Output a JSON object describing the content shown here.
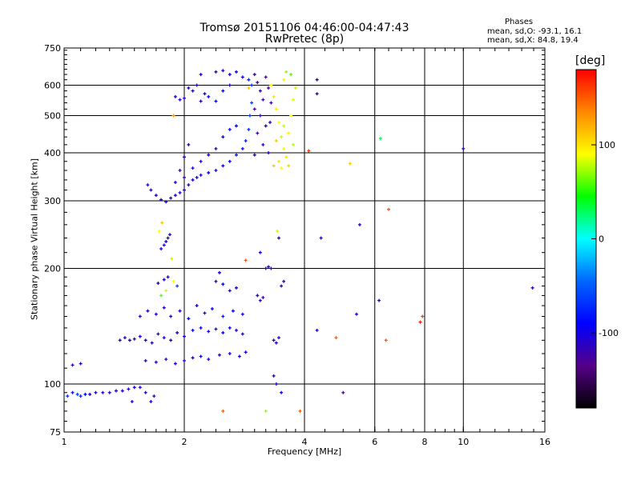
{
  "header": {
    "title": "Tromsø 20151106 04:46:00-04:47:43",
    "subtitle": "RwPretec (8p)"
  },
  "phases_box": {
    "heading": "Phases",
    "line_o": "mean, sd,O: -93.1, 16.1",
    "line_x": "mean, sd,X:  84.8, 19.4"
  },
  "colorbar": {
    "unit": "[deg]",
    "ticks": [
      "100",
      "0",
      "-100"
    ],
    "tick_values": [
      100,
      0,
      -100
    ],
    "range": [
      -180,
      180
    ],
    "colors": [
      "#ff0000",
      "#ff8800",
      "#ffff00",
      "#00ff00",
      "#00ffff",
      "#0066ff",
      "#0000ff",
      "#550088",
      "#000000"
    ]
  },
  "chart_data": {
    "type": "scatter",
    "title": "Tromsø 20151106 04:46:00-04:47:43",
    "subtitle": "RwPretec (8p)",
    "xlabel": "Frequency [MHz]",
    "ylabel": "Stationary phase Virtual Height [km]",
    "x_scale": "log",
    "y_scale": "log",
    "xlim": [
      1,
      16
    ],
    "ylim": [
      75,
      750
    ],
    "x_ticks": [
      1,
      2,
      4,
      6,
      8,
      10,
      16
    ],
    "x_tick_labels": [
      "1",
      "2",
      "4",
      "6",
      "8",
      "10",
      "16"
    ],
    "y_ticks": [
      75,
      100,
      200,
      300,
      400,
      500,
      600,
      750
    ],
    "y_tick_labels": [
      "75",
      "100",
      "200",
      "300",
      "400",
      "500",
      "600",
      "750"
    ],
    "grid": true,
    "color_variable": "phase [deg]",
    "points": [
      {
        "x": 1.02,
        "y": 93,
        "phase": -70
      },
      {
        "x": 1.05,
        "y": 95,
        "phase": -85
      },
      {
        "x": 1.08,
        "y": 94,
        "phase": -60
      },
      {
        "x": 1.1,
        "y": 93,
        "phase": -75
      },
      {
        "x": 1.13,
        "y": 94,
        "phase": -90
      },
      {
        "x": 1.16,
        "y": 94,
        "phase": -100
      },
      {
        "x": 1.2,
        "y": 95,
        "phase": -105
      },
      {
        "x": 1.25,
        "y": 95,
        "phase": -110
      },
      {
        "x": 1.3,
        "y": 95,
        "phase": -108
      },
      {
        "x": 1.35,
        "y": 96,
        "phase": -112
      },
      {
        "x": 1.4,
        "y": 96,
        "phase": -110
      },
      {
        "x": 1.45,
        "y": 97,
        "phase": -105
      },
      {
        "x": 1.5,
        "y": 98,
        "phase": -100
      },
      {
        "x": 1.55,
        "y": 98,
        "phase": -110
      },
      {
        "x": 1.1,
        "y": 113,
        "phase": -110
      },
      {
        "x": 1.05,
        "y": 112,
        "phase": -115
      },
      {
        "x": 1.48,
        "y": 90,
        "phase": -110
      },
      {
        "x": 1.6,
        "y": 95,
        "phase": -115
      },
      {
        "x": 1.65,
        "y": 90,
        "phase": -110
      },
      {
        "x": 1.68,
        "y": 93,
        "phase": -120
      },
      {
        "x": 1.38,
        "y": 130,
        "phase": -110
      },
      {
        "x": 1.42,
        "y": 132,
        "phase": -115
      },
      {
        "x": 1.46,
        "y": 130,
        "phase": -105
      },
      {
        "x": 1.5,
        "y": 131,
        "phase": -110
      },
      {
        "x": 1.55,
        "y": 133,
        "phase": -100
      },
      {
        "x": 1.6,
        "y": 130,
        "phase": -115
      },
      {
        "x": 1.66,
        "y": 128,
        "phase": -110
      },
      {
        "x": 1.72,
        "y": 135,
        "phase": -105
      },
      {
        "x": 1.78,
        "y": 132,
        "phase": -100
      },
      {
        "x": 1.85,
        "y": 130,
        "phase": -110
      },
      {
        "x": 1.92,
        "y": 136,
        "phase": -95
      },
      {
        "x": 2.0,
        "y": 133,
        "phase": -100
      },
      {
        "x": 2.1,
        "y": 138,
        "phase": -90
      },
      {
        "x": 2.2,
        "y": 140,
        "phase": -95
      },
      {
        "x": 2.3,
        "y": 137,
        "phase": -100
      },
      {
        "x": 2.4,
        "y": 139,
        "phase": -85
      },
      {
        "x": 2.5,
        "y": 136,
        "phase": -90
      },
      {
        "x": 2.6,
        "y": 140,
        "phase": -95
      },
      {
        "x": 2.7,
        "y": 138,
        "phase": -100
      },
      {
        "x": 2.8,
        "y": 135,
        "phase": -110
      },
      {
        "x": 1.6,
        "y": 115,
        "phase": -110
      },
      {
        "x": 1.7,
        "y": 114,
        "phase": -105
      },
      {
        "x": 1.8,
        "y": 116,
        "phase": -110
      },
      {
        "x": 1.9,
        "y": 113,
        "phase": -100
      },
      {
        "x": 2.0,
        "y": 115,
        "phase": -105
      },
      {
        "x": 2.1,
        "y": 117,
        "phase": -110
      },
      {
        "x": 2.2,
        "y": 118,
        "phase": -95
      },
      {
        "x": 2.3,
        "y": 116,
        "phase": -105
      },
      {
        "x": 2.45,
        "y": 119,
        "phase": -100
      },
      {
        "x": 2.6,
        "y": 120,
        "phase": -110
      },
      {
        "x": 2.75,
        "y": 118,
        "phase": -95
      },
      {
        "x": 2.85,
        "y": 121,
        "phase": -100
      },
      {
        "x": 1.55,
        "y": 150,
        "phase": -110
      },
      {
        "x": 1.62,
        "y": 155,
        "phase": -105
      },
      {
        "x": 1.7,
        "y": 152,
        "phase": -100
      },
      {
        "x": 1.78,
        "y": 158,
        "phase": -110
      },
      {
        "x": 1.85,
        "y": 150,
        "phase": -95
      },
      {
        "x": 1.95,
        "y": 155,
        "phase": -105
      },
      {
        "x": 2.05,
        "y": 148,
        "phase": -90
      },
      {
        "x": 2.15,
        "y": 160,
        "phase": -100
      },
      {
        "x": 2.25,
        "y": 153,
        "phase": -85
      },
      {
        "x": 2.35,
        "y": 157,
        "phase": -95
      },
      {
        "x": 2.5,
        "y": 150,
        "phase": -80
      },
      {
        "x": 2.65,
        "y": 155,
        "phase": -90
      },
      {
        "x": 2.8,
        "y": 152,
        "phase": -100
      },
      {
        "x": 1.75,
        "y": 170,
        "phase": 60
      },
      {
        "x": 1.8,
        "y": 175,
        "phase": 80
      },
      {
        "x": 1.72,
        "y": 183,
        "phase": -110
      },
      {
        "x": 1.78,
        "y": 187,
        "phase": -100
      },
      {
        "x": 1.82,
        "y": 190,
        "phase": -105
      },
      {
        "x": 1.88,
        "y": 185,
        "phase": 90
      },
      {
        "x": 1.92,
        "y": 180,
        "phase": -60
      },
      {
        "x": 2.4,
        "y": 185,
        "phase": -100
      },
      {
        "x": 2.5,
        "y": 182,
        "phase": -90
      },
      {
        "x": 2.6,
        "y": 175,
        "phase": -110
      },
      {
        "x": 2.7,
        "y": 178,
        "phase": -105
      },
      {
        "x": 1.75,
        "y": 225,
        "phase": -100
      },
      {
        "x": 1.78,
        "y": 230,
        "phase": -110
      },
      {
        "x": 1.8,
        "y": 235,
        "phase": -95
      },
      {
        "x": 1.82,
        "y": 240,
        "phase": -105
      },
      {
        "x": 1.84,
        "y": 245,
        "phase": -100
      },
      {
        "x": 1.73,
        "y": 250,
        "phase": 90
      },
      {
        "x": 1.76,
        "y": 263,
        "phase": 110
      },
      {
        "x": 1.86,
        "y": 212,
        "phase": 80
      },
      {
        "x": 1.62,
        "y": 330,
        "phase": -110
      },
      {
        "x": 1.65,
        "y": 320,
        "phase": -115
      },
      {
        "x": 1.7,
        "y": 310,
        "phase": -110
      },
      {
        "x": 1.75,
        "y": 302,
        "phase": -105
      },
      {
        "x": 1.8,
        "y": 298,
        "phase": -110
      },
      {
        "x": 1.85,
        "y": 305,
        "phase": -115
      },
      {
        "x": 1.9,
        "y": 310,
        "phase": -110
      },
      {
        "x": 1.95,
        "y": 315,
        "phase": -105
      },
      {
        "x": 2.0,
        "y": 320,
        "phase": -110
      },
      {
        "x": 2.05,
        "y": 330,
        "phase": -100
      },
      {
        "x": 2.1,
        "y": 340,
        "phase": -105
      },
      {
        "x": 2.15,
        "y": 345,
        "phase": -95
      },
      {
        "x": 2.2,
        "y": 350,
        "phase": -100
      },
      {
        "x": 2.3,
        "y": 355,
        "phase": -90
      },
      {
        "x": 2.4,
        "y": 360,
        "phase": -95
      },
      {
        "x": 2.5,
        "y": 370,
        "phase": -85
      },
      {
        "x": 2.6,
        "y": 380,
        "phase": -90
      },
      {
        "x": 2.7,
        "y": 395,
        "phase": -80
      },
      {
        "x": 2.8,
        "y": 410,
        "phase": -85
      },
      {
        "x": 2.85,
        "y": 430,
        "phase": -75
      },
      {
        "x": 2.9,
        "y": 460,
        "phase": -70
      },
      {
        "x": 2.92,
        "y": 500,
        "phase": -65
      },
      {
        "x": 2.95,
        "y": 540,
        "phase": -60
      },
      {
        "x": 1.9,
        "y": 335,
        "phase": -110
      },
      {
        "x": 2.0,
        "y": 345,
        "phase": -115
      },
      {
        "x": 2.1,
        "y": 365,
        "phase": -105
      },
      {
        "x": 2.2,
        "y": 380,
        "phase": -110
      },
      {
        "x": 2.3,
        "y": 395,
        "phase": -100
      },
      {
        "x": 2.4,
        "y": 410,
        "phase": -105
      },
      {
        "x": 2.0,
        "y": 390,
        "phase": -120
      },
      {
        "x": 1.95,
        "y": 360,
        "phase": -125
      },
      {
        "x": 2.05,
        "y": 420,
        "phase": -110
      },
      {
        "x": 2.5,
        "y": 440,
        "phase": -100
      },
      {
        "x": 2.6,
        "y": 460,
        "phase": -95
      },
      {
        "x": 2.7,
        "y": 470,
        "phase": -90
      },
      {
        "x": 1.9,
        "y": 560,
        "phase": -110
      },
      {
        "x": 1.95,
        "y": 550,
        "phase": -105
      },
      {
        "x": 2.0,
        "y": 555,
        "phase": -110
      },
      {
        "x": 2.05,
        "y": 590,
        "phase": -100
      },
      {
        "x": 2.1,
        "y": 580,
        "phase": -105
      },
      {
        "x": 2.15,
        "y": 600,
        "phase": -110
      },
      {
        "x": 2.2,
        "y": 545,
        "phase": -115
      },
      {
        "x": 2.25,
        "y": 570,
        "phase": -100
      },
      {
        "x": 2.3,
        "y": 560,
        "phase": -90
      },
      {
        "x": 2.4,
        "y": 545,
        "phase": -85
      },
      {
        "x": 2.5,
        "y": 580,
        "phase": -95
      },
      {
        "x": 2.6,
        "y": 600,
        "phase": -100
      },
      {
        "x": 2.2,
        "y": 640,
        "phase": -110
      },
      {
        "x": 2.4,
        "y": 650,
        "phase": -105
      },
      {
        "x": 2.5,
        "y": 655,
        "phase": -110
      },
      {
        "x": 2.6,
        "y": 640,
        "phase": -100
      },
      {
        "x": 2.7,
        "y": 650,
        "phase": -90
      },
      {
        "x": 2.8,
        "y": 630,
        "phase": -95
      },
      {
        "x": 2.9,
        "y": 620,
        "phase": -80
      },
      {
        "x": 2.95,
        "y": 600,
        "phase": -70
      },
      {
        "x": 3.0,
        "y": 640,
        "phase": -120
      },
      {
        "x": 3.05,
        "y": 610,
        "phase": -125
      },
      {
        "x": 3.1,
        "y": 580,
        "phase": -115
      },
      {
        "x": 3.15,
        "y": 550,
        "phase": -120
      },
      {
        "x": 3.0,
        "y": 520,
        "phase": -125
      },
      {
        "x": 3.1,
        "y": 500,
        "phase": -115
      },
      {
        "x": 3.2,
        "y": 470,
        "phase": -110
      },
      {
        "x": 3.05,
        "y": 450,
        "phase": -120
      },
      {
        "x": 3.15,
        "y": 420,
        "phase": -115
      },
      {
        "x": 3.25,
        "y": 400,
        "phase": -110
      },
      {
        "x": 3.0,
        "y": 395,
        "phase": -100
      },
      {
        "x": 3.2,
        "y": 630,
        "phase": -130
      },
      {
        "x": 3.25,
        "y": 590,
        "phase": -125
      },
      {
        "x": 3.3,
        "y": 540,
        "phase": -120
      },
      {
        "x": 3.28,
        "y": 480,
        "phase": -115
      },
      {
        "x": 3.3,
        "y": 600,
        "phase": 90
      },
      {
        "x": 3.35,
        "y": 560,
        "phase": 100
      },
      {
        "x": 3.4,
        "y": 520,
        "phase": 95
      },
      {
        "x": 3.45,
        "y": 480,
        "phase": 90
      },
      {
        "x": 3.5,
        "y": 440,
        "phase": 80
      },
      {
        "x": 3.55,
        "y": 410,
        "phase": 85
      },
      {
        "x": 3.6,
        "y": 390,
        "phase": 100
      },
      {
        "x": 3.65,
        "y": 450,
        "phase": 95
      },
      {
        "x": 3.7,
        "y": 500,
        "phase": 90
      },
      {
        "x": 3.75,
        "y": 550,
        "phase": 85
      },
      {
        "x": 3.8,
        "y": 590,
        "phase": 80
      },
      {
        "x": 3.55,
        "y": 620,
        "phase": 95
      },
      {
        "x": 3.6,
        "y": 650,
        "phase": 70
      },
      {
        "x": 3.7,
        "y": 640,
        "phase": 60
      },
      {
        "x": 3.45,
        "y": 380,
        "phase": 100
      },
      {
        "x": 3.35,
        "y": 370,
        "phase": 110
      },
      {
        "x": 3.5,
        "y": 365,
        "phase": 90
      },
      {
        "x": 3.65,
        "y": 370,
        "phase": 105
      },
      {
        "x": 3.75,
        "y": 420,
        "phase": 75
      },
      {
        "x": 3.4,
        "y": 430,
        "phase": 110
      },
      {
        "x": 3.55,
        "y": 470,
        "phase": 80
      },
      {
        "x": 3.05,
        "y": 170,
        "phase": -110
      },
      {
        "x": 3.1,
        "y": 165,
        "phase": -115
      },
      {
        "x": 3.15,
        "y": 168,
        "phase": -120
      },
      {
        "x": 3.2,
        "y": 200,
        "phase": -110
      },
      {
        "x": 3.25,
        "y": 202,
        "phase": -115
      },
      {
        "x": 3.3,
        "y": 200,
        "phase": -120
      },
      {
        "x": 3.35,
        "y": 130,
        "phase": -110
      },
      {
        "x": 3.4,
        "y": 128,
        "phase": -105
      },
      {
        "x": 3.45,
        "y": 132,
        "phase": -110
      },
      {
        "x": 3.5,
        "y": 180,
        "phase": -105
      },
      {
        "x": 3.55,
        "y": 185,
        "phase": -110
      },
      {
        "x": 3.42,
        "y": 250,
        "phase": 80
      },
      {
        "x": 3.45,
        "y": 240,
        "phase": -100
      },
      {
        "x": 3.4,
        "y": 100,
        "phase": -110
      },
      {
        "x": 3.35,
        "y": 105,
        "phase": -105
      },
      {
        "x": 3.5,
        "y": 95,
        "phase": -90
      },
      {
        "x": 3.1,
        "y": 220,
        "phase": -100
      },
      {
        "x": 3.2,
        "y": 85,
        "phase": 70
      },
      {
        "x": 3.9,
        "y": 85,
        "phase": 150
      },
      {
        "x": 2.5,
        "y": 85,
        "phase": 150
      },
      {
        "x": 2.85,
        "y": 210,
        "phase": 150
      },
      {
        "x": 2.45,
        "y": 195,
        "phase": -100
      },
      {
        "x": 4.3,
        "y": 620,
        "phase": -110
      },
      {
        "x": 4.3,
        "y": 570,
        "phase": -120
      },
      {
        "x": 4.1,
        "y": 405,
        "phase": 160
      },
      {
        "x": 4.4,
        "y": 240,
        "phase": -110
      },
      {
        "x": 4.3,
        "y": 138,
        "phase": -100
      },
      {
        "x": 4.8,
        "y": 132,
        "phase": 150
      },
      {
        "x": 5.0,
        "y": 95,
        "phase": -130
      },
      {
        "x": 5.2,
        "y": 375,
        "phase": 110
      },
      {
        "x": 5.4,
        "y": 152,
        "phase": -100
      },
      {
        "x": 5.5,
        "y": 260,
        "phase": -110
      },
      {
        "x": 6.2,
        "y": 436,
        "phase": 30
      },
      {
        "x": 6.5,
        "y": 285,
        "phase": 150
      },
      {
        "x": 6.15,
        "y": 165,
        "phase": -110
      },
      {
        "x": 6.4,
        "y": 130,
        "phase": 150
      },
      {
        "x": 7.8,
        "y": 145,
        "phase": 170
      },
      {
        "x": 7.9,
        "y": 150,
        "phase": 160
      },
      {
        "x": 10.0,
        "y": 410,
        "phase": -110
      },
      {
        "x": 14.9,
        "y": 178,
        "phase": -120
      },
      {
        "x": 2.9,
        "y": 590,
        "phase": 110
      },
      {
        "x": 1.88,
        "y": 500,
        "phase": 130
      }
    ]
  }
}
